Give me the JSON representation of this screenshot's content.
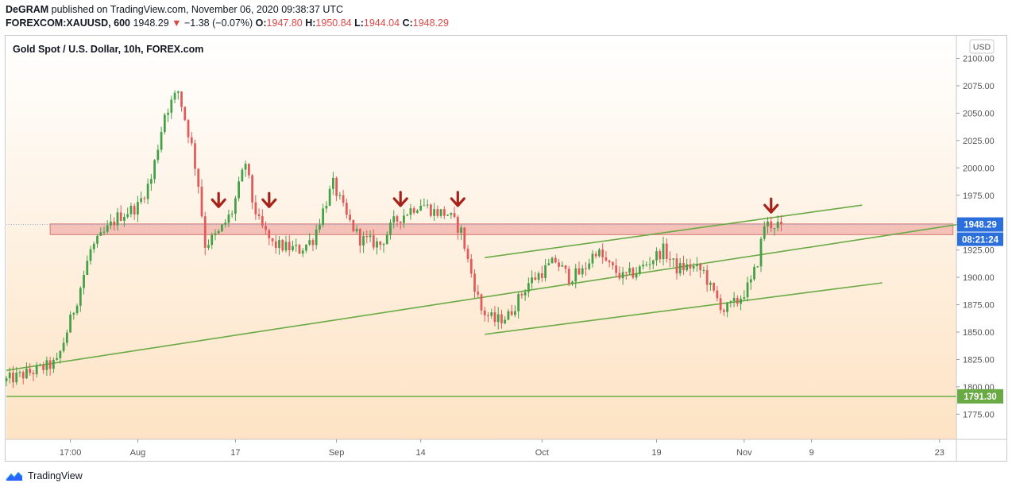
{
  "header": {
    "author": "DeGRAM",
    "published_text": "published on TradingView.com, November 06, 2020 09:38:37 UTC",
    "symbol": "FOREXCOM:XAUUSD, 600",
    "last": "1948.29",
    "change_arrow": "▼",
    "change": "−1.38 (−0.07%)",
    "o_label": "O:",
    "o_value": "1947.80",
    "h_label": "H:",
    "h_value": "1950.84",
    "l_label": "L:",
    "l_value": "1944.04",
    "c_label": "C:",
    "c_value": "1948.29"
  },
  "footer": {
    "brand": "TradingView",
    "logo_icon": "tradingview-logo-icon"
  },
  "chart_data": {
    "type": "candlestick",
    "title": "Gold Spot / U.S. Dollar, 10h, FOREX.com",
    "currency_label": "USD",
    "y_range": [
      1752,
      2120
    ],
    "y_ticks": [
      "1775.00",
      "1800.00",
      "1825.00",
      "1850.00",
      "1875.00",
      "1900.00",
      "1925.00",
      "1950.00",
      "1975.00",
      "2000.00",
      "2025.00",
      "2050.00",
      "2075.00",
      "2100.00"
    ],
    "x_range": [
      0,
      141
    ],
    "x_ticks": [
      {
        "label": "17:00",
        "t": 9.5
      },
      {
        "label": "Aug",
        "t": 19.5
      },
      {
        "label": "17",
        "t": 34
      },
      {
        "label": "Sep",
        "t": 49
      },
      {
        "label": "14",
        "t": 61.5
      },
      {
        "label": "Oct",
        "t": 79.5
      },
      {
        "label": "19",
        "t": 96.5
      },
      {
        "label": "Nov",
        "t": 109.5
      },
      {
        "label": "9",
        "t": 119.5
      },
      {
        "label": "23",
        "t": 138.5
      }
    ],
    "anchors": [
      [
        0,
        1805
      ],
      [
        4,
        1813
      ],
      [
        8,
        1822
      ],
      [
        11,
        1880
      ],
      [
        13,
        1925
      ],
      [
        17,
        1955
      ],
      [
        20,
        1965
      ],
      [
        22,
        1990
      ],
      [
        24,
        2050
      ],
      [
        26,
        2070
      ],
      [
        28,
        2020
      ],
      [
        29,
        1985
      ],
      [
        30,
        1930
      ],
      [
        32,
        1940
      ],
      [
        34,
        1960
      ],
      [
        36,
        2005
      ],
      [
        37,
        1970
      ],
      [
        38,
        1950
      ],
      [
        40,
        1930
      ],
      [
        44,
        1925
      ],
      [
        46,
        1935
      ],
      [
        48,
        1970
      ],
      [
        49,
        1985
      ],
      [
        51,
        1955
      ],
      [
        53,
        1935
      ],
      [
        56,
        1930
      ],
      [
        58,
        1950
      ],
      [
        60,
        1960
      ],
      [
        62,
        1968
      ],
      [
        64,
        1960
      ],
      [
        66,
        1958
      ],
      [
        68,
        1942
      ],
      [
        69,
        1915
      ],
      [
        71,
        1870
      ],
      [
        73,
        1860
      ],
      [
        75,
        1865
      ],
      [
        78,
        1895
      ],
      [
        80,
        1905
      ],
      [
        82,
        1915
      ],
      [
        84,
        1900
      ],
      [
        86,
        1905
      ],
      [
        88,
        1925
      ],
      [
        90,
        1910
      ],
      [
        92,
        1900
      ],
      [
        94,
        1905
      ],
      [
        96,
        1915
      ],
      [
        98,
        1925
      ],
      [
        100,
        1908
      ],
      [
        102,
        1910
      ],
      [
        104,
        1905
      ],
      [
        105,
        1890
      ],
      [
        107,
        1870
      ],
      [
        109,
        1878
      ],
      [
        111,
        1895
      ],
      [
        112,
        1915
      ],
      [
        113,
        1948.29
      ],
      [
        115,
        1948.29
      ]
    ],
    "resistance_zone": [
      1939,
      1948.8
    ],
    "horizontal_level": 1791.3,
    "trendlines": [
      {
        "t1": 0,
        "p1": 1815,
        "t2": 143,
        "p2": 1950,
        "color": "#6aaa45"
      },
      {
        "t1": 71,
        "p1": 1918,
        "t2": 127,
        "p2": 1966,
        "color": "#6aaa45"
      },
      {
        "t1": 71,
        "p1": 1848,
        "t2": 130,
        "p2": 1895,
        "color": "#6aaa45"
      }
    ],
    "down_arrows": [
      {
        "t": 31.5,
        "p": 1971
      },
      {
        "t": 39,
        "p": 1971
      },
      {
        "t": 58.5,
        "p": 1972
      },
      {
        "t": 67,
        "p": 1972
      },
      {
        "t": 113.5,
        "p": 1966
      }
    ],
    "price_label": {
      "value": "1948.29",
      "timer": "08:21:24",
      "color": "#2b6fdc"
    },
    "level_label": {
      "value": "1791.30",
      "color": "#6aaa45"
    },
    "up_color": "#43a047",
    "down_color": "#e05a5a",
    "zone_fill": "#f1b8b0",
    "zone_stroke": "#d77c73",
    "bg_top": "#ffffff",
    "bg_bottom": "#fde3c4"
  }
}
